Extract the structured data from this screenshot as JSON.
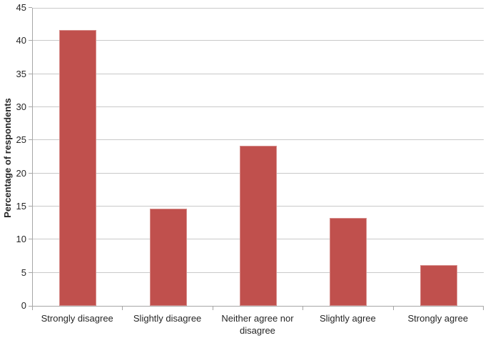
{
  "chart_data": {
    "type": "bar",
    "title": "",
    "xlabel": "",
    "ylabel": "Percentage of respondents",
    "categories": [
      "Strongly disagree",
      "Slightly disagree",
      "Neither agree nor disagree",
      "Slightly agree",
      "Strongly agree"
    ],
    "values": [
      41.7,
      14.7,
      24.2,
      13.3,
      6.1
    ],
    "ylim": [
      0,
      45
    ],
    "yticks": [
      0,
      5,
      10,
      15,
      20,
      25,
      30,
      35,
      40,
      45
    ],
    "grid": true,
    "legend": "none",
    "colors": {
      "bar": "#c0504d",
      "gridline": "#c9c9c9",
      "axis": "#a6a6a6",
      "text": "#262626",
      "background": "#ffffff"
    }
  }
}
